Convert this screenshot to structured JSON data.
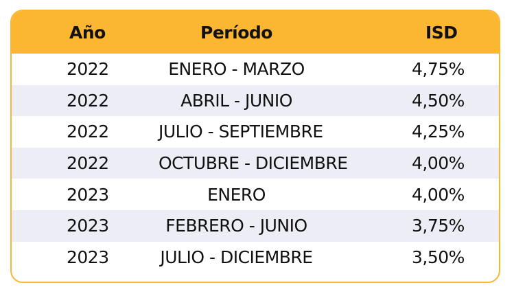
{
  "colors": {
    "header_bg": "#FBB632",
    "stripe_bg": "#EDEDF6",
    "border": "#FBB632",
    "text": "#111111"
  },
  "table": {
    "headers": [
      "Año",
      "Período",
      "ISD"
    ],
    "rows": [
      [
        "2022",
        "ENERO - MARZO",
        "4,75%"
      ],
      [
        "2022",
        "ABRIL - JUNIO",
        "4,50%"
      ],
      [
        "2022",
        "JULIO - SEPTIEMBRE",
        "4,25%"
      ],
      [
        "2022",
        "OCTUBRE - DICIEMBRE",
        "4,00%"
      ],
      [
        "2023",
        "ENERO",
        "4,00%"
      ],
      [
        "2023",
        "FEBRERO - JUNIO",
        "3,75%"
      ],
      [
        "2023",
        "JULIO - DICIEMBRE",
        "3,50%"
      ]
    ]
  }
}
